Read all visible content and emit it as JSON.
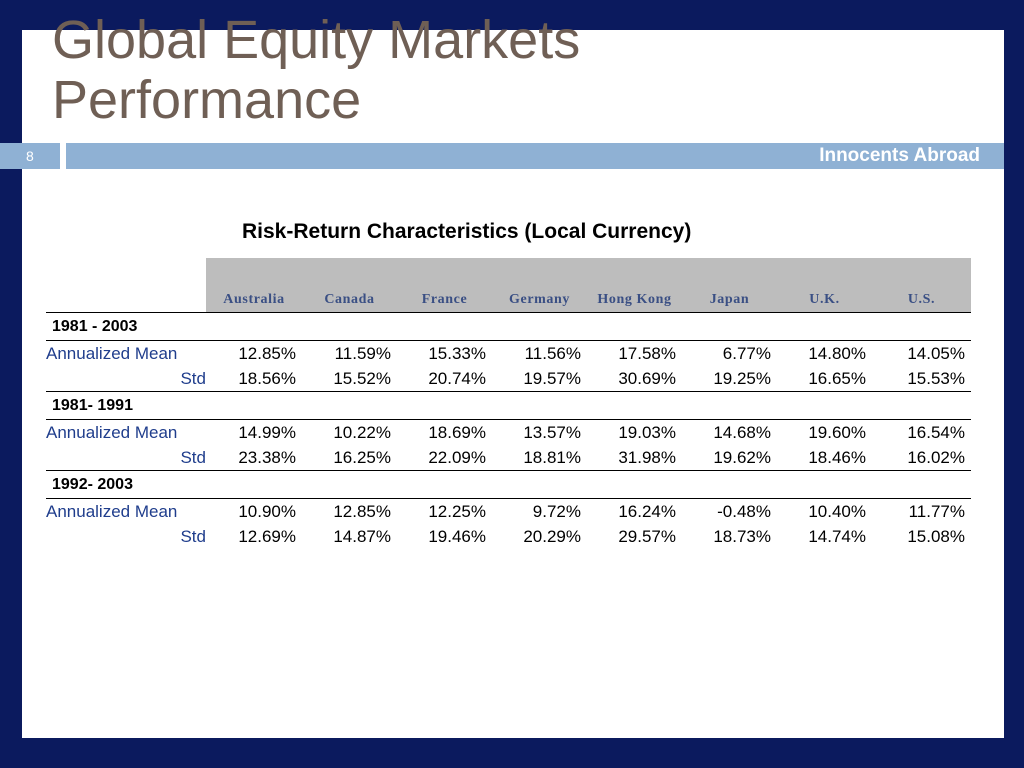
{
  "slide": {
    "title_line1": "Global Equity Markets",
    "title_line2": "Performance",
    "slide_number": "8",
    "banner_text": "Innocents Abroad",
    "table_title": "Risk-Return Characteristics (Local Currency)"
  },
  "table": {
    "columns": [
      "Australia",
      "Canada",
      "France",
      "Germany",
      "Hong Kong",
      "Japan",
      "U.K.",
      "U.S."
    ],
    "periods": [
      {
        "label": "1981 - 2003",
        "mean_label": "Annualized Mean",
        "std_label": "Std",
        "mean": [
          "12.85%",
          "11.59%",
          "15.33%",
          "11.56%",
          "17.58%",
          "6.77%",
          "14.80%",
          "14.05%"
        ],
        "std": [
          "18.56%",
          "15.52%",
          "20.74%",
          "19.57%",
          "30.69%",
          "19.25%",
          "16.65%",
          "15.53%"
        ]
      },
      {
        "label": "1981- 1991",
        "mean_label": "Annualized Mean",
        "std_label": "Std",
        "mean": [
          "14.99%",
          "10.22%",
          "18.69%",
          "13.57%",
          "19.03%",
          "14.68%",
          "19.60%",
          "16.54%"
        ],
        "std": [
          "23.38%",
          "16.25%",
          "22.09%",
          "18.81%",
          "31.98%",
          "19.62%",
          "18.46%",
          "16.02%"
        ]
      },
      {
        "label": "1992- 2003",
        "mean_label": "Annualized Mean",
        "std_label": "Std",
        "mean": [
          "10.90%",
          "12.85%",
          "12.25%",
          "9.72%",
          "16.24%",
          "-0.48%",
          "10.40%",
          "11.77%"
        ],
        "std": [
          "12.69%",
          "14.87%",
          "19.46%",
          "20.29%",
          "29.57%",
          "18.73%",
          "14.74%",
          "15.08%"
        ]
      }
    ]
  },
  "colors": {
    "frame": "#0b1a5e",
    "banner": "#8fb1d4",
    "title": "#6f5f55",
    "label_blue": "#1f3d8c"
  }
}
